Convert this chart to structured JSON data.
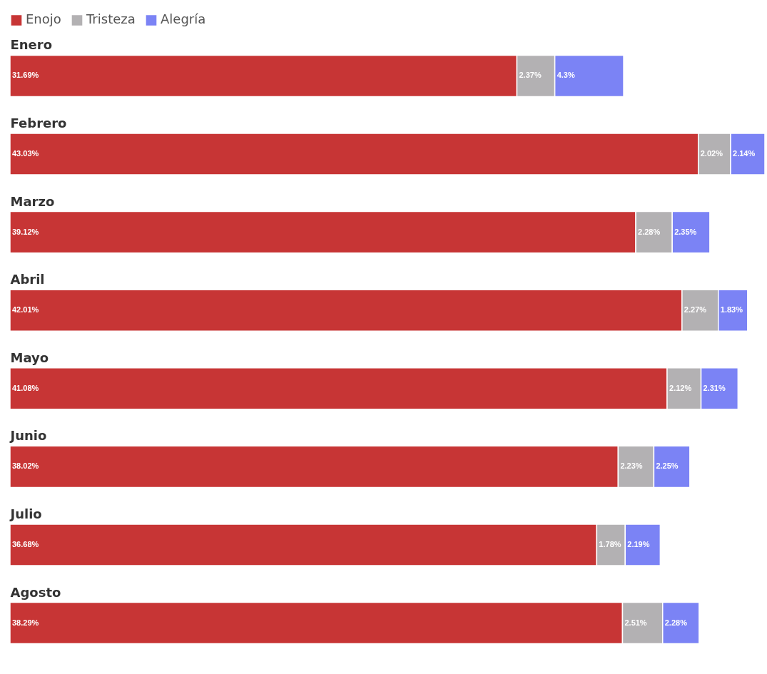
{
  "chart_data": {
    "type": "bar",
    "orientation": "horizontal",
    "stacked": true,
    "legend": "top left",
    "categories": [
      "Enero",
      "Febrero",
      "Marzo",
      "Abril",
      "Mayo",
      "Junio",
      "Julio",
      "Agosto"
    ],
    "series": [
      {
        "name": "Enojo",
        "color": "#c73535",
        "values": [
          31.69,
          43.03,
          39.12,
          42.01,
          41.08,
          38.02,
          36.68,
          38.29
        ],
        "value_labels": [
          "31.69%",
          "43.03%",
          "39.12%",
          "42.01%",
          "41.08%",
          "38.02%",
          "36.68%",
          "38.29%"
        ]
      },
      {
        "name": "Tristeza",
        "color": "#b3b1b3",
        "values": [
          2.37,
          2.02,
          2.28,
          2.27,
          2.12,
          2.23,
          1.78,
          2.51
        ],
        "value_labels": [
          "2.37%",
          "2.02%",
          "2.28%",
          "2.27%",
          "2.12%",
          "2.23%",
          "1.78%",
          "2.51%"
        ]
      },
      {
        "name": "Alegría",
        "color": "#7b83f5",
        "values": [
          4.3,
          2.14,
          2.35,
          1.83,
          2.31,
          2.25,
          2.19,
          2.28
        ],
        "value_labels": [
          "4.3%",
          "2.14%",
          "2.35%",
          "1.83%",
          "2.31%",
          "2.25%",
          "2.19%",
          "2.28%"
        ]
      }
    ]
  }
}
